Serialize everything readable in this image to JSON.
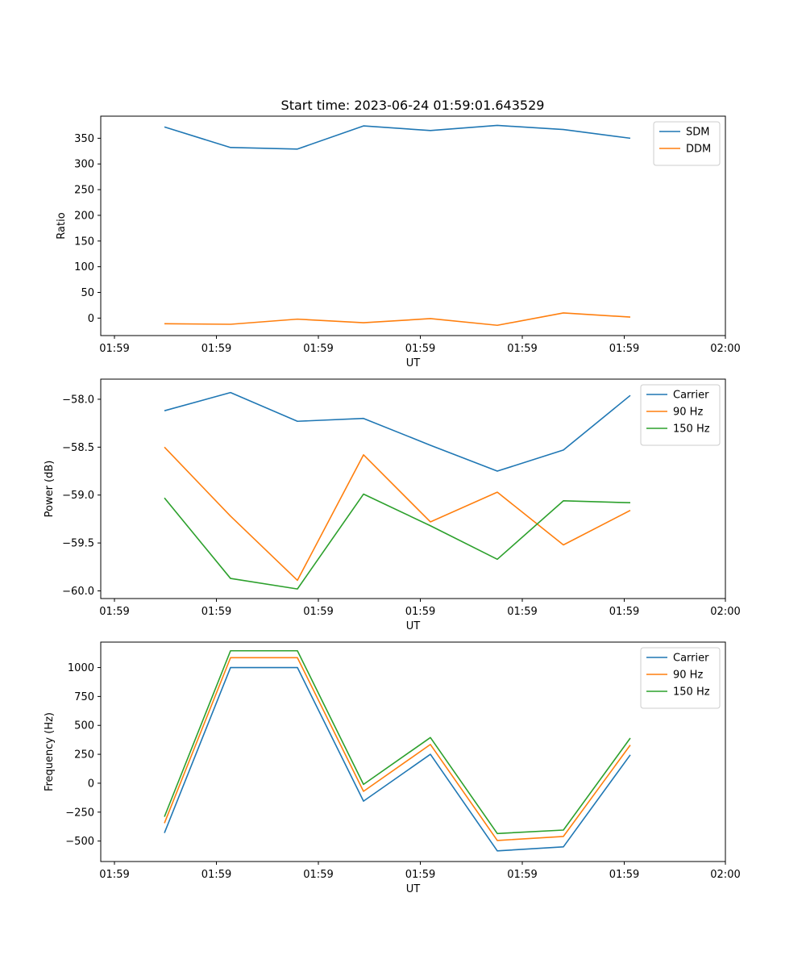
{
  "figure": {
    "title": "Start time: 2023-06-24 01:59:01.643529"
  },
  "chart_data": [
    {
      "type": "line",
      "ylabel": "Ratio",
      "xlabel": "UT",
      "ylim": [
        -34,
        393
      ],
      "yticks": [
        0,
        50,
        100,
        150,
        200,
        250,
        300,
        350
      ],
      "xtick_labels": [
        "01:59",
        "01:59",
        "01:59",
        "01:59",
        "01:59",
        "01:59",
        "02:00"
      ],
      "legend_position": "top-right",
      "series": [
        {
          "name": "SDM",
          "color": "#1f77b4",
          "values": [
            372,
            332,
            329,
            374,
            365,
            375,
            367,
            350
          ]
        },
        {
          "name": "DDM",
          "color": "#ff7f0e",
          "values": [
            -11,
            -12,
            -2,
            -9,
            -1,
            -14,
            10,
            2
          ]
        }
      ]
    },
    {
      "type": "line",
      "ylabel": "Power (dB)",
      "xlabel": "UT",
      "ylim": [
        -60.08,
        -57.79
      ],
      "yticks": [
        -60.0,
        -59.5,
        -59.0,
        -58.5,
        -58.0
      ],
      "ytick_labels": [
        "−60.0",
        "−59.5",
        "−59.0",
        "−58.5",
        "−58.0"
      ],
      "xtick_labels": [
        "01:59",
        "01:59",
        "01:59",
        "01:59",
        "01:59",
        "01:59",
        "02:00"
      ],
      "legend_position": "top-right",
      "series": [
        {
          "name": "Carrier",
          "color": "#1f77b4",
          "values": [
            -58.12,
            -57.93,
            -58.23,
            -58.2,
            -58.48,
            -58.75,
            -58.53,
            -57.96
          ]
        },
        {
          "name": "90 Hz",
          "color": "#ff7f0e",
          "values": [
            -58.5,
            -59.22,
            -59.89,
            -58.58,
            -59.28,
            -58.97,
            -59.52,
            -59.16
          ]
        },
        {
          "name": "150 Hz",
          "color": "#2ca02c",
          "values": [
            -59.03,
            -59.87,
            -59.98,
            -58.99,
            -59.32,
            -59.67,
            -59.06,
            -59.08
          ]
        }
      ]
    },
    {
      "type": "line",
      "ylabel": "Frequency (Hz)",
      "xlabel": "UT",
      "ylim": [
        -677,
        1220
      ],
      "yticks": [
        -500,
        -250,
        0,
        250,
        500,
        750,
        1000
      ],
      "ytick_labels": [
        "−500",
        "−250",
        "0",
        "250",
        "500",
        "750",
        "1000"
      ],
      "xtick_labels": [
        "01:59",
        "01:59",
        "01:59",
        "01:59",
        "01:59",
        "01:59",
        "02:00"
      ],
      "legend_position": "top-right",
      "series": [
        {
          "name": "Carrier",
          "color": "#1f77b4",
          "values": [
            -430,
            1000,
            1000,
            -155,
            250,
            -585,
            -550,
            245
          ]
        },
        {
          "name": "90 Hz",
          "color": "#ff7f0e",
          "values": [
            -345,
            1085,
            1085,
            -70,
            335,
            -495,
            -460,
            330
          ]
        },
        {
          "name": "150 Hz",
          "color": "#2ca02c",
          "values": [
            -290,
            1145,
            1145,
            -10,
            395,
            -435,
            -405,
            390
          ]
        }
      ]
    }
  ]
}
